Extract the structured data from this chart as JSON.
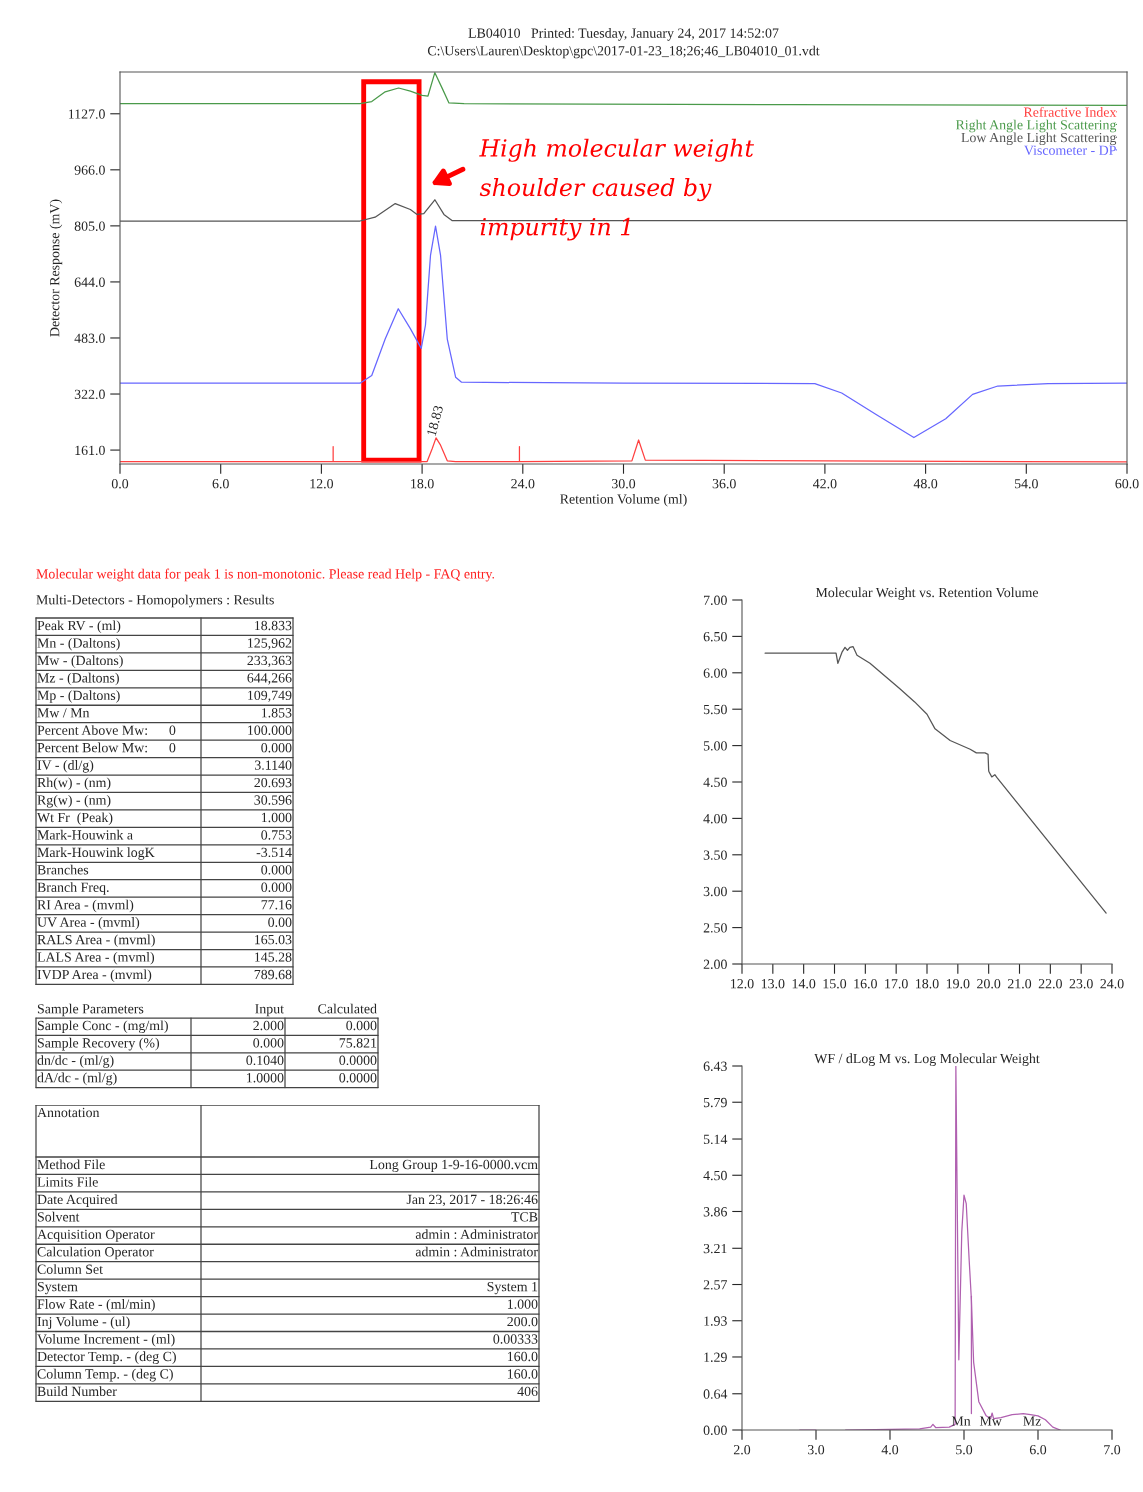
{
  "chart_data": [
    {
      "type": "line",
      "title": "LB04010   Printed: Tuesday, January 24, 2017 14:52:07",
      "subtitle": "C:\\Users\\Lauren\\Desktop\\gpc\\2017-01-23_18;26;46_LB04010_01.vdt",
      "xlabel": "Retention Volume (ml)",
      "ylabel": "Detector Response (mV)",
      "xlim": [
        0,
        60
      ],
      "ylim": [
        121,
        1247
      ],
      "xticks": [
        {
          "value": 0,
          "label": "0.0"
        },
        {
          "value": 6,
          "label": "6.0"
        },
        {
          "value": 12,
          "label": "12.0"
        },
        {
          "value": 18,
          "label": "18.0"
        },
        {
          "value": 24,
          "label": "24.0"
        },
        {
          "value": 30,
          "label": "30.0"
        },
        {
          "value": 36,
          "label": "36.0"
        },
        {
          "value": 42,
          "label": "42.0"
        },
        {
          "value": 48,
          "label": "48.0"
        },
        {
          "value": 54,
          "label": "54.0"
        },
        {
          "value": 60,
          "label": "60.0"
        }
      ],
      "yticks": [
        {
          "value": 161,
          "label": "161.0"
        },
        {
          "value": 322,
          "label": "322.0"
        },
        {
          "value": 483,
          "label": "483.0"
        },
        {
          "value": 644,
          "label": "644.0"
        },
        {
          "value": 805,
          "label": "805.0"
        },
        {
          "value": 966,
          "label": "966.0"
        },
        {
          "value": 1127,
          "label": "1127.0"
        }
      ],
      "legend": "top right",
      "series": [
        {
          "name": "Refractive Index",
          "color": "#ff4040",
          "x": [
            0,
            12.7,
            12.7,
            12.7,
            18.3,
            18.6,
            18.83,
            19.1,
            19.5,
            20,
            23.8,
            23.8,
            23.8,
            30.5,
            30.9,
            31.3,
            60
          ],
          "values": [
            128,
            128,
            171,
            128,
            128,
            165,
            196,
            175,
            130,
            128,
            128,
            171,
            128,
            130,
            190,
            132,
            127
          ]
        },
        {
          "name": "Right Angle Light Scattering",
          "color": "#4a9a4a",
          "x": [
            0,
            14.3,
            15.0,
            15.8,
            16.6,
            17.3,
            18.0,
            18.35,
            18.76,
            19.2,
            19.6,
            20.5,
            40,
            60
          ],
          "values": [
            1156,
            1156,
            1162,
            1190,
            1201,
            1192,
            1180,
            1178,
            1245,
            1200,
            1158,
            1156,
            1153,
            1151
          ]
        },
        {
          "name": "Low Angle Light Scattering",
          "color": "#555555",
          "x": [
            0,
            14.3,
            15.2,
            16.4,
            17.3,
            17.7,
            18.1,
            18.76,
            19.3,
            19.8,
            60
          ],
          "values": [
            819,
            819,
            830,
            869,
            852,
            838,
            840,
            880,
            838,
            820,
            820
          ]
        },
        {
          "name": "Viscometer - DP",
          "color": "#6666ff",
          "x": [
            0,
            14.3,
            15.0,
            15.8,
            16.58,
            17.3,
            17.95,
            18.2,
            18.5,
            18.8,
            19.1,
            19.5,
            20.0,
            20.35,
            30,
            41.4,
            43.0,
            45.1,
            47.3,
            49.2,
            50.8,
            52.3,
            55.3,
            60
          ],
          "values": [
            353,
            353,
            375,
            480,
            567,
            510,
            453,
            520,
            720,
            804,
            720,
            480,
            370,
            356,
            353,
            352,
            325,
            262,
            197,
            251,
            321,
            345,
            352,
            353
          ]
        }
      ],
      "annotations": [
        {
          "text": "18.83",
          "x": 18.83,
          "y": 196
        },
        "High molecular weight\nshoulder caused by\nimpurity in 1"
      ]
    },
    {
      "type": "other",
      "title": "Molecular weight data for peak 1 is non-monotonic. Please read Help - FAQ entry.",
      "subtitle": "Multi-Detectors - Homopolymers : Results",
      "annotations": [
        "Peak RV - (ml)\t18.833",
        "Mn - (Daltons)\t125,962",
        "Mw - (Daltons)\t233,363",
        "Mz - (Daltons)\t644,266",
        "Mp - (Daltons)\t109,749",
        "Mw / Mn\t1.853",
        "Percent Above Mw:      0\t100.000",
        "Percent Below Mw:      0\t0.000",
        "IV - (dl/g)\t3.1140",
        "Rh(w) - (nm)\t20.693",
        "Rg(w) - (nm)\t30.596",
        "Wt Fr  (Peak)\t1.000",
        "Mark-Houwink a\t0.753",
        "Mark-Houwink logK\t-3.514",
        "Branches\t0.000",
        "Branch Freq.\t0.000",
        "RI Area - (mvml)\t77.16",
        "UV Area - (mvml)\t0.00",
        "RALS Area - (mvml)\t165.03",
        "LALS Area - (mvml)\t145.28",
        "IVDP Area - (mvml)\t789.68"
      ]
    },
    {
      "type": "other",
      "annotations": [
        "Sample Parameters\tInput\tCalculated",
        "Sample Conc - (mg/ml)\t2.000\t0.000",
        "Sample Recovery (%)\t0.000\t75.821",
        "dn/dc - (ml/g)\t0.1040\t0.0000",
        "dA/dc - (ml/g)\t1.0000\t0.0000"
      ]
    },
    {
      "type": "other",
      "annotations": [
        "Annotation\t",
        "Method File\tLong Group 1-9-16-0000.vcm",
        "Limits File\t",
        "Date Acquired\tJan 23, 2017 - 18:26:46",
        "Solvent\tTCB",
        "Acquisition Operator\tadmin : Administrator",
        "Calculation Operator\tadmin : Administrator",
        "Column Set\t",
        "System\tSystem 1",
        "Flow Rate - (ml/min)\t1.000",
        "Inj Volume - (ul)\t200.0",
        "Volume Increment - (ml)\t0.00333",
        "Detector Temp. - (deg C)\t160.0",
        "Column Temp. - (deg C)\t160.0",
        "Build Number\t406"
      ]
    },
    {
      "type": "line",
      "title": "Molecular Weight vs. Retention Volume",
      "xlim": [
        12,
        24
      ],
      "ylim": [
        2,
        7
      ],
      "xticks": [
        {
          "value": 12,
          "label": "12.0"
        },
        {
          "value": 13,
          "label": "13.0"
        },
        {
          "value": 14,
          "label": "14.0"
        },
        {
          "value": 15,
          "label": "15.0"
        },
        {
          "value": 16,
          "label": "16.0"
        },
        {
          "value": 17,
          "label": "17.0"
        },
        {
          "value": 18,
          "label": "18.0"
        },
        {
          "value": 19,
          "label": "19.0"
        },
        {
          "value": 20,
          "label": "20.0"
        },
        {
          "value": 21,
          "label": "21.0"
        },
        {
          "value": 22,
          "label": "22.0"
        },
        {
          "value": 23,
          "label": "23.0"
        },
        {
          "value": 24,
          "label": "24.0"
        }
      ],
      "yticks": [
        {
          "value": 2,
          "label": "2.00"
        },
        {
          "value": 2.5,
          "label": "2.50"
        },
        {
          "value": 3,
          "label": "3.00"
        },
        {
          "value": 3.5,
          "label": "3.50"
        },
        {
          "value": 4,
          "label": "4.00"
        },
        {
          "value": 4.5,
          "label": "4.50"
        },
        {
          "value": 5,
          "label": "5.00"
        },
        {
          "value": 5.5,
          "label": "5.50"
        },
        {
          "value": 6,
          "label": "6.00"
        },
        {
          "value": 6.5,
          "label": "6.50"
        },
        {
          "value": 7,
          "label": "7.00"
        }
      ],
      "series": [
        {
          "color": "#555555",
          "x": [
            12.75,
            15.05,
            15.11,
            15.24,
            15.34,
            15.42,
            15.5,
            15.6,
            15.73,
            16.15,
            17.12,
            17.6,
            18.0,
            18.26,
            18.75,
            19.4,
            19.6,
            19.88,
            19.98,
            20.0,
            20.01,
            20.1,
            20.2,
            20.27,
            23.81
          ],
          "values": [
            6.27,
            6.27,
            6.13,
            6.28,
            6.35,
            6.31,
            6.35,
            6.36,
            6.24,
            6.13,
            5.78,
            5.6,
            5.43,
            5.23,
            5.07,
            4.95,
            4.9,
            4.9,
            4.88,
            4.66,
            4.64,
            4.57,
            4.6,
            4.56,
            2.7
          ]
        }
      ]
    },
    {
      "type": "line",
      "title": "WF / dLog M vs. Log Molecular Weight",
      "xlim": [
        2,
        7
      ],
      "ylim": [
        0,
        6.43
      ],
      "xticks": [
        {
          "value": 2,
          "label": "2.0"
        },
        {
          "value": 3,
          "label": "3.0"
        },
        {
          "value": 4,
          "label": "4.0"
        },
        {
          "value": 5,
          "label": "5.0"
        },
        {
          "value": 6,
          "label": "6.0"
        },
        {
          "value": 7,
          "label": "7.0"
        }
      ],
      "yticks": [
        {
          "value": 0,
          "label": "0.00"
        },
        0.64,
        1.29,
        1.93,
        2.57,
        3.21,
        3.86,
        {
          "value": 4.5,
          "label": "4.50"
        },
        5.14,
        5.79,
        6.43
      ],
      "series": [
        {
          "color": "#b060b0",
          "x": [
            2.78,
            3.0,
            3.2,
            3.4,
            4.0,
            4.4,
            4.55,
            4.58,
            4.62,
            4.8,
            4.88,
            4.89,
            4.93,
            4.97,
            5.0,
            5.03,
            5.07,
            5.1,
            5.13,
            5.2,
            5.3,
            5.36,
            5.38,
            5.4,
            5.5,
            5.65,
            5.8,
            5.9,
            6.0,
            6.1,
            6.2,
            6.3
          ],
          "values": [
            0,
            0,
            null,
            0,
            0.01,
            0.02,
            0.05,
            0.1,
            0.04,
            0.05,
            0.1,
            6.43,
            1.24,
            3.5,
            4.15,
            4.0,
            3.0,
            2.3,
            1.2,
            0.5,
            0.25,
            0.2,
            0.3,
            0.2,
            0.22,
            0.27,
            0.29,
            0.27,
            0.25,
            0.18,
            0.05,
            0
          ]
        },
        {
          "color": "#b060b0",
          "x": [
            5.1,
            5.1
          ],
          "values": [
            0.29,
            2.36
          ]
        }
      ],
      "annotations": [
        "Mn",
        "Mw",
        "Mz"
      ]
    }
  ]
}
